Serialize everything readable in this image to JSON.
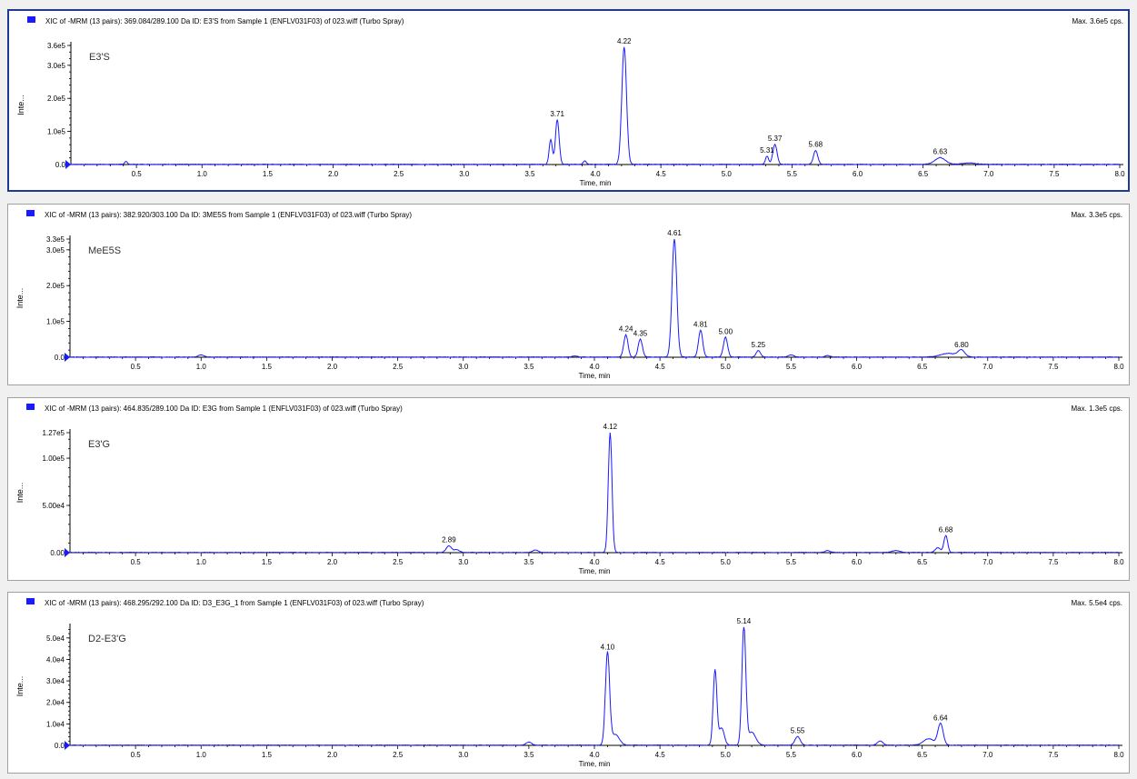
{
  "styles": {
    "trace_color": "#1a1aff",
    "frame_color": "#1f3a93",
    "marker_color": "#1a1aff",
    "axis_color": "#000000"
  },
  "chart_data": [
    {
      "type": "line",
      "header": "XIC of -MRM (13 pairs): 369.084/289.100 Da ID: E3'S  from Sample 1 (ENFLV031F03) of 023.wiff (Turbo Spray)",
      "max_label": "Max. 3.6e5 cps.",
      "label": "E3'S",
      "xlabel": "Time, min",
      "ylabel": "Inte...",
      "xlim": [
        0,
        8.0
      ],
      "ylim": [
        0,
        360000
      ],
      "xticks": [
        "0.5",
        "1.0",
        "1.5",
        "2.0",
        "2.5",
        "3.0",
        "3.5",
        "4.0",
        "4.5",
        "5.0",
        "5.5",
        "6.0",
        "6.5",
        "7.0",
        "7.5",
        "8.0"
      ],
      "yticks": [
        {
          "v": 0,
          "label": "0.0"
        },
        {
          "v": 100000,
          "label": "1.0e5"
        },
        {
          "v": 200000,
          "label": "2.0e5"
        },
        {
          "v": 300000,
          "label": "3.0e5"
        },
        {
          "v": 360000,
          "label": "3.6e5"
        }
      ],
      "peaks": [
        {
          "t": 0.42,
          "h": 9000,
          "w": 0.01
        },
        {
          "t": 3.66,
          "h": 75000,
          "w": 0.012
        },
        {
          "t": 3.71,
          "h": 135000,
          "w": 0.014
        },
        {
          "t": 3.92,
          "h": 10000,
          "w": 0.012
        },
        {
          "t": 4.22,
          "h": 355000,
          "w": 0.018
        },
        {
          "t": 5.31,
          "h": 25000,
          "w": 0.012
        },
        {
          "t": 5.37,
          "h": 60000,
          "w": 0.016
        },
        {
          "t": 5.68,
          "h": 42000,
          "w": 0.016
        },
        {
          "t": 6.63,
          "h": 20000,
          "w": 0.04
        },
        {
          "t": 6.85,
          "h": 4000,
          "w": 0.05
        }
      ],
      "labels": [
        {
          "t": 3.71,
          "h": 135000,
          "text": "3.71"
        },
        {
          "t": 4.22,
          "h": 355000,
          "text": "4.22"
        },
        {
          "t": 5.31,
          "h": 25000,
          "text": "5.31"
        },
        {
          "t": 5.37,
          "h": 60000,
          "text": "5.37"
        },
        {
          "t": 5.68,
          "h": 42000,
          "text": "5.68"
        },
        {
          "t": 6.63,
          "h": 20000,
          "text": "6.63"
        }
      ]
    },
    {
      "type": "line",
      "header": "XIC of -MRM (13 pairs): 382.920/303.100 Da ID: 3ME5S from Sample 1 (ENFLV031F03) of 023.wiff (Turbo Spray)",
      "max_label": "Max. 3.3e5 cps.",
      "label": "MeE5S",
      "xlabel": "Time, min",
      "ylabel": "Inte...",
      "xlim": [
        0,
        8.0
      ],
      "ylim": [
        0,
        330000
      ],
      "xticks": [
        "0.5",
        "1.0",
        "1.5",
        "2.0",
        "2.5",
        "3.0",
        "3.5",
        "4.0",
        "4.5",
        "5.0",
        "5.5",
        "6.0",
        "6.5",
        "7.0",
        "7.5",
        "8.0"
      ],
      "yticks": [
        {
          "v": 0,
          "label": "0.0"
        },
        {
          "v": 100000,
          "label": "1.0e5"
        },
        {
          "v": 200000,
          "label": "2.0e5"
        },
        {
          "v": 300000,
          "label": "3.0e5"
        },
        {
          "v": 330000,
          "label": "3.3e5"
        }
      ],
      "peaks": [
        {
          "t": 1.0,
          "h": 6000,
          "w": 0.02
        },
        {
          "t": 3.85,
          "h": 3000,
          "w": 0.02
        },
        {
          "t": 4.24,
          "h": 62000,
          "w": 0.016
        },
        {
          "t": 4.35,
          "h": 50000,
          "w": 0.016
        },
        {
          "t": 4.61,
          "h": 330000,
          "w": 0.018
        },
        {
          "t": 4.81,
          "h": 75000,
          "w": 0.016
        },
        {
          "t": 5.0,
          "h": 55000,
          "w": 0.016
        },
        {
          "t": 5.25,
          "h": 18000,
          "w": 0.016
        },
        {
          "t": 5.5,
          "h": 6000,
          "w": 0.02
        },
        {
          "t": 5.78,
          "h": 4000,
          "w": 0.02
        },
        {
          "t": 6.7,
          "h": 10000,
          "w": 0.06
        },
        {
          "t": 6.8,
          "h": 18000,
          "w": 0.025
        }
      ],
      "labels": [
        {
          "t": 4.24,
          "h": 62000,
          "text": "4.24"
        },
        {
          "t": 4.35,
          "h": 50000,
          "text": "4.35"
        },
        {
          "t": 4.61,
          "h": 330000,
          "text": "4.61"
        },
        {
          "t": 4.81,
          "h": 75000,
          "text": "4.81"
        },
        {
          "t": 5.0,
          "h": 55000,
          "text": "5.00"
        },
        {
          "t": 5.25,
          "h": 18000,
          "text": "5.25"
        },
        {
          "t": 6.8,
          "h": 18000,
          "text": "6.80"
        }
      ]
    },
    {
      "type": "line",
      "header": "XIC of -MRM (13 pairs): 464.835/289.100 Da ID: E3G from Sample 1 (ENFLV031F03) of 023.wiff (Turbo Spray)",
      "max_label": "Max. 1.3e5 cps.",
      "label": "E3'G",
      "xlabel": "Time, min",
      "ylabel": "Inte...",
      "xlim": [
        0,
        8.0
      ],
      "ylim": [
        0,
        127000
      ],
      "xticks": [
        "0.5",
        "1.0",
        "1.5",
        "2.0",
        "2.5",
        "3.0",
        "3.5",
        "4.0",
        "4.5",
        "5.0",
        "5.5",
        "6.0",
        "6.5",
        "7.0",
        "7.5",
        "8.0"
      ],
      "yticks": [
        {
          "v": 0,
          "label": "0.00"
        },
        {
          "v": 50000,
          "label": "5.00e4"
        },
        {
          "v": 100000,
          "label": "1.00e5"
        },
        {
          "v": 127000,
          "label": "1.27e5"
        }
      ],
      "peaks": [
        {
          "t": 2.89,
          "h": 7000,
          "w": 0.02
        },
        {
          "t": 2.95,
          "h": 3000,
          "w": 0.02
        },
        {
          "t": 3.55,
          "h": 2500,
          "w": 0.02
        },
        {
          "t": 4.12,
          "h": 127000,
          "w": 0.014
        },
        {
          "t": 5.78,
          "h": 2000,
          "w": 0.02
        },
        {
          "t": 6.3,
          "h": 2000,
          "w": 0.03
        },
        {
          "t": 6.62,
          "h": 5000,
          "w": 0.02
        },
        {
          "t": 6.68,
          "h": 18000,
          "w": 0.014
        }
      ],
      "labels": [
        {
          "t": 2.89,
          "h": 7000,
          "text": "2.89"
        },
        {
          "t": 4.12,
          "h": 127000,
          "text": "4.12"
        },
        {
          "t": 6.68,
          "h": 18000,
          "text": "6.68"
        }
      ]
    },
    {
      "type": "line",
      "header": "XIC of -MRM (13 pairs): 468.295/292.100 Da ID: D3_E3G_1 from Sample 1 (ENFLV031F03) of 023.wiff (Turbo Spray)",
      "max_label": "Max. 5.5e4 cps.",
      "label": "D2-E3'G",
      "xlabel": "Time, min",
      "ylabel": "Inte...",
      "xlim": [
        0,
        8.0
      ],
      "ylim": [
        0,
        55000
      ],
      "xticks": [
        "0.5",
        "1.0",
        "1.5",
        "2.0",
        "2.5",
        "3.0",
        "3.5",
        "4.0",
        "4.5",
        "5.0",
        "5.5",
        "6.0",
        "6.5",
        "7.0",
        "7.5",
        "8.0"
      ],
      "yticks": [
        {
          "v": 0,
          "label": "0.0"
        },
        {
          "v": 10000,
          "label": "1.0e4"
        },
        {
          "v": 20000,
          "label": "2.0e4"
        },
        {
          "v": 30000,
          "label": "3.0e4"
        },
        {
          "v": 40000,
          "label": "4.0e4"
        },
        {
          "v": 50000,
          "label": "5.0e4"
        }
      ],
      "peaks": [
        {
          "t": 3.5,
          "h": 1500,
          "w": 0.02
        },
        {
          "t": 4.1,
          "h": 43000,
          "w": 0.016
        },
        {
          "t": 4.16,
          "h": 5000,
          "w": 0.03
        },
        {
          "t": 4.92,
          "h": 35000,
          "w": 0.014
        },
        {
          "t": 4.97,
          "h": 8000,
          "w": 0.02
        },
        {
          "t": 5.14,
          "h": 55000,
          "w": 0.015
        },
        {
          "t": 5.2,
          "h": 6000,
          "w": 0.03
        },
        {
          "t": 5.55,
          "h": 4000,
          "w": 0.02
        },
        {
          "t": 6.18,
          "h": 2000,
          "w": 0.02
        },
        {
          "t": 6.55,
          "h": 3000,
          "w": 0.04
        },
        {
          "t": 6.64,
          "h": 10000,
          "w": 0.02
        }
      ],
      "labels": [
        {
          "t": 4.1,
          "h": 43000,
          "text": "4.10"
        },
        {
          "t": 5.14,
          "h": 55000,
          "text": "5.14"
        },
        {
          "t": 5.55,
          "h": 4000,
          "text": "5.55"
        },
        {
          "t": 6.64,
          "h": 10000,
          "text": "6.64"
        }
      ]
    }
  ]
}
